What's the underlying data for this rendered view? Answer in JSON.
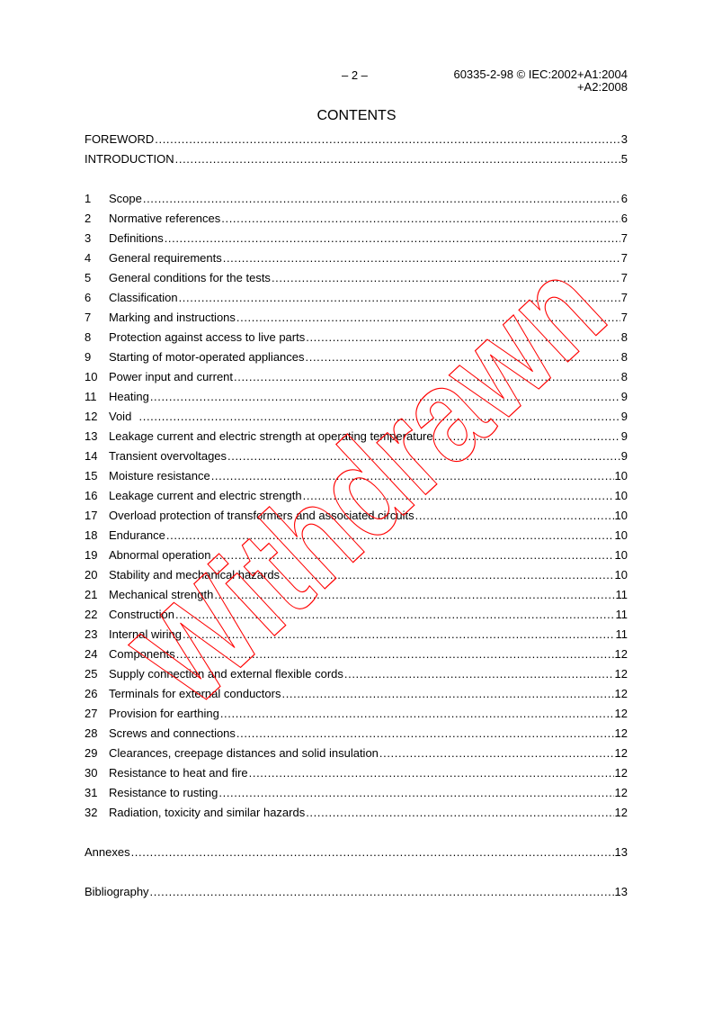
{
  "header": {
    "page": "– 2 –",
    "reference_line1": "60335-2-98 © IEC:2002+A1:2004",
    "reference_line2": "+A2:2008"
  },
  "title": "CONTENTS",
  "front": [
    {
      "label": "FOREWORD",
      "page": "3"
    },
    {
      "label": "INTRODUCTION",
      "page": "5"
    }
  ],
  "clauses": [
    {
      "num": "1",
      "label": "Scope",
      "page": "6"
    },
    {
      "num": "2",
      "label": "Normative references",
      "page": "6"
    },
    {
      "num": "3",
      "label": "Definitions",
      "page": "7"
    },
    {
      "num": "4",
      "label": "General requirements",
      "page": "7"
    },
    {
      "num": "5",
      "label": "General conditions for the tests",
      "page": "7"
    },
    {
      "num": "6",
      "label": "Classification",
      "page": "7"
    },
    {
      "num": "7",
      "label": "Marking and instructions",
      "page": "7"
    },
    {
      "num": "8",
      "label": "Protection against access to live parts",
      "page": "8"
    },
    {
      "num": "9",
      "label": "Starting of motor-operated appliances",
      "page": "8"
    },
    {
      "num": "10",
      "label": "Power input and current",
      "page": "8"
    },
    {
      "num": "11",
      "label": "Heating",
      "page": "9"
    },
    {
      "num": "12",
      "label": "Void  ",
      "page": "9"
    },
    {
      "num": "13",
      "label": "Leakage current and electric strength at operating temperature",
      "page": "9"
    },
    {
      "num": "14",
      "label": "Transient overvoltages",
      "page": "9"
    },
    {
      "num": "15",
      "label": "Moisture resistance",
      "page": "10"
    },
    {
      "num": "16",
      "label": "Leakage current and electric strength",
      "page": "10"
    },
    {
      "num": "17",
      "label": "Overload protection of transformers and associated circuits",
      "page": "10"
    },
    {
      "num": "18",
      "label": "Endurance",
      "page": "10"
    },
    {
      "num": "19",
      "label": "Abnormal operation",
      "page": "10"
    },
    {
      "num": "20",
      "label": "Stability and mechanical hazards",
      "page": "10"
    },
    {
      "num": "21",
      "label": "Mechanical strength",
      "page": "11"
    },
    {
      "num": "22",
      "label": "Construction",
      "page": "11"
    },
    {
      "num": "23",
      "label": "Internal wiring",
      "page": "11"
    },
    {
      "num": "24",
      "label": "Components",
      "page": "12"
    },
    {
      "num": "25",
      "label": "Supply connection and external flexible cords",
      "page": "12"
    },
    {
      "num": "26",
      "label": "Terminals for external conductors",
      "page": "12"
    },
    {
      "num": "27",
      "label": "Provision for earthing",
      "page": "12"
    },
    {
      "num": "28",
      "label": "Screws and connections",
      "page": "12"
    },
    {
      "num": "29",
      "label": "Clearances, creepage distances and solid insulation",
      "page": "12"
    },
    {
      "num": "30",
      "label": "Resistance to heat and fire",
      "page": "12"
    },
    {
      "num": "31",
      "label": "Resistance to rusting",
      "page": "12"
    },
    {
      "num": "32",
      "label": "Radiation, toxicity and similar hazards",
      "page": "12"
    }
  ],
  "back": [
    {
      "label": "Annexes",
      "page": "13"
    },
    {
      "label": "Bibliography",
      "page": "13"
    }
  ],
  "watermark": {
    "text": "Withdrawn",
    "color": "#ff0000"
  }
}
